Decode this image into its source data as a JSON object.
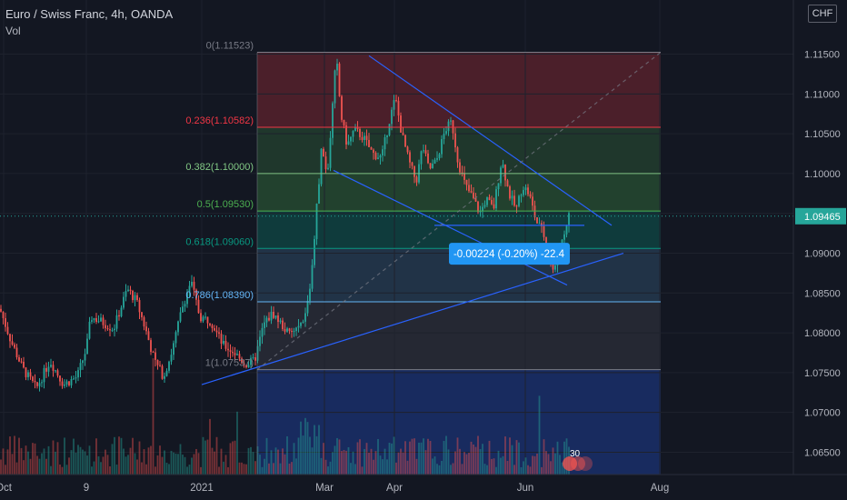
{
  "header": {
    "title": "Euro / Swiss Franc, 4h, OANDA",
    "vol_label": "Vol",
    "currency": "CHF"
  },
  "colors": {
    "bg": "#131722",
    "up": "#26a69a",
    "down": "#ef5350",
    "trend": "#2962ff",
    "price_tag": "#2196f3"
  },
  "chart_data": {
    "type": "candlestick",
    "symbol": "EURCHF",
    "y_ticks": [
      1.065,
      1.07,
      1.075,
      1.08,
      1.085,
      1.09,
      1.095,
      1.1,
      1.105,
      1.11,
      1.115
    ],
    "y_tick_labels": [
      "1.06500",
      "1.07000",
      "1.07500",
      "1.08000",
      "1.08500",
      "1.09000",
      "1.09500",
      "1.10000",
      "1.10500",
      "1.11000",
      "1.11500"
    ],
    "ylim": [
      1.0622,
      1.1218
    ],
    "x_labels": [
      "Oct",
      "9",
      "2021",
      "Mar",
      "Apr",
      "Jun",
      "Aug"
    ],
    "current_price": 1.09465,
    "current_price_label": "1.09465",
    "fib_levels": [
      {
        "ratio": "0",
        "price": 1.11523,
        "label": "0(1.11523)",
        "color": "#787b86"
      },
      {
        "ratio": "0.236",
        "price": 1.10582,
        "label": "0.236(1.10582)",
        "color": "#f23645"
      },
      {
        "ratio": "0.382",
        "price": 1.1,
        "label": "0.382(1.10000)",
        "color": "#81c784"
      },
      {
        "ratio": "0.5",
        "price": 1.0953,
        "label": "0.5(1.09530)",
        "color": "#4caf50"
      },
      {
        "ratio": "0.618",
        "price": 1.0906,
        "label": "0.618(1.09060)",
        "color": "#089981"
      },
      {
        "ratio": "0.786",
        "price": 1.0839,
        "label": "0.786(1.08390)",
        "color": "#64b5f6"
      },
      {
        "ratio": "1",
        "price": 1.07537,
        "label": "1(1.07537)",
        "color": "#787b86"
      }
    ],
    "measure_label": "-0.00224 (-0.20%) -22.4",
    "indicator_badge": "30",
    "ohlc_shape": [
      [
        0,
        1.083
      ],
      [
        12,
        1.079
      ],
      [
        25,
        1.0755
      ],
      [
        40,
        1.073
      ],
      [
        55,
        1.0765
      ],
      [
        70,
        1.0735
      ],
      [
        85,
        1.0745
      ],
      [
        95,
        1.078
      ],
      [
        100,
        1.082
      ],
      [
        110,
        1.0815
      ],
      [
        125,
        1.0805
      ],
      [
        140,
        1.0855
      ],
      [
        150,
        1.084
      ],
      [
        160,
        1.0805
      ],
      [
        170,
        1.0765
      ],
      [
        180,
        1.0745
      ],
      [
        190,
        1.078
      ],
      [
        200,
        1.083
      ],
      [
        210,
        1.0865
      ],
      [
        220,
        1.082
      ],
      [
        232,
        1.0815
      ],
      [
        245,
        1.0785
      ],
      [
        258,
        1.0775
      ],
      [
        270,
        1.076
      ],
      [
        280,
        1.0765
      ],
      [
        290,
        1.081
      ],
      [
        300,
        1.0825
      ],
      [
        310,
        1.081
      ],
      [
        318,
        1.0798
      ],
      [
        327,
        1.0805
      ],
      [
        335,
        1.0815
      ],
      [
        342,
        1.0865
      ],
      [
        348,
        1.095
      ],
      [
        354,
        1.1035
      ],
      [
        360,
        1.0995
      ],
      [
        365,
        1.107
      ],
      [
        370,
        1.1148
      ],
      [
        375,
        1.1075
      ],
      [
        382,
        1.1035
      ],
      [
        390,
        1.1055
      ],
      [
        400,
        1.1045
      ],
      [
        410,
        1.1025
      ],
      [
        420,
        1.102
      ],
      [
        428,
        1.1065
      ],
      [
        435,
        1.1095
      ],
      [
        442,
        1.105
      ],
      [
        450,
        1.1015
      ],
      [
        458,
        1.099
      ],
      [
        465,
        1.1035
      ],
      [
        472,
        1.1005
      ],
      [
        480,
        1.1015
      ],
      [
        490,
        1.1055
      ],
      [
        497,
        1.1065
      ],
      [
        504,
        1.1015
      ],
      [
        512,
        1.0985
      ],
      [
        520,
        1.097
      ],
      [
        528,
        1.095
      ],
      [
        535,
        1.0968
      ],
      [
        543,
        1.0955
      ],
      [
        552,
        1.1018
      ],
      [
        560,
        1.0975
      ],
      [
        568,
        1.0955
      ],
      [
        575,
        1.0985
      ],
      [
        582,
        1.0975
      ],
      [
        590,
        1.094
      ],
      [
        598,
        1.0925
      ],
      [
        605,
        1.089
      ],
      [
        610,
        1.0875
      ],
      [
        615,
        1.0905
      ],
      [
        620,
        1.092
      ],
      [
        625,
        1.0947
      ]
    ]
  }
}
